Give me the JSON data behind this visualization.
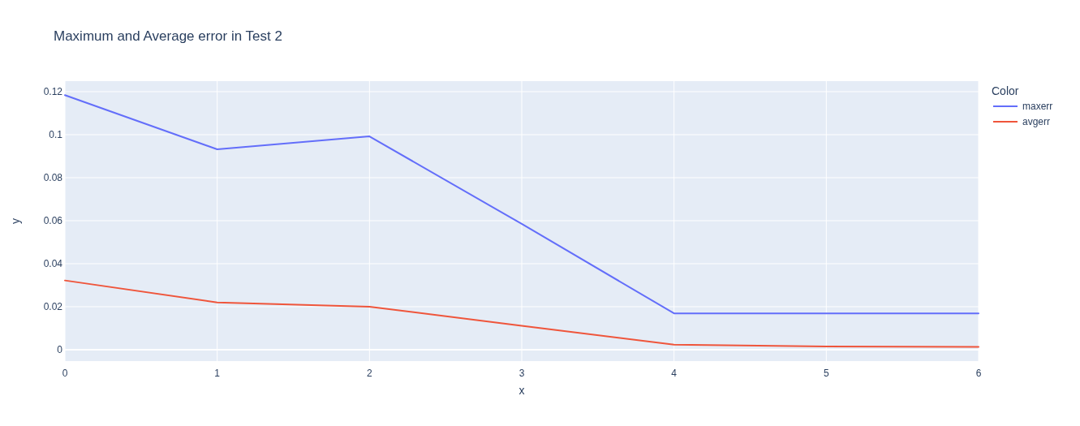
{
  "chart_data": {
    "type": "line",
    "title": "Maximum and Average error in Test 2",
    "xlabel": "x",
    "ylabel": "y",
    "legend_title": "Color",
    "x": [
      0,
      1,
      2,
      3,
      4,
      5,
      6
    ],
    "series": [
      {
        "name": "maxerr",
        "color": "#636efa",
        "values": [
          0.1184,
          0.0932,
          0.0992,
          0.0585,
          0.0169,
          0.0169,
          0.0169
        ]
      },
      {
        "name": "avgerr",
        "color": "#ef553b",
        "values": [
          0.0322,
          0.022,
          0.02,
          0.0111,
          0.0023,
          0.0015,
          0.0013
        ]
      }
    ],
    "xlim": [
      0,
      6
    ],
    "xticks": [
      0,
      1,
      2,
      3,
      4,
      5,
      6
    ],
    "ylim": [
      -0.0053,
      0.1249
    ],
    "yticks": [
      0,
      0.02,
      0.04,
      0.06,
      0.08,
      0.1,
      0.12
    ],
    "grid": true,
    "legend": "top right",
    "marker": "none",
    "line_style": "solid"
  }
}
